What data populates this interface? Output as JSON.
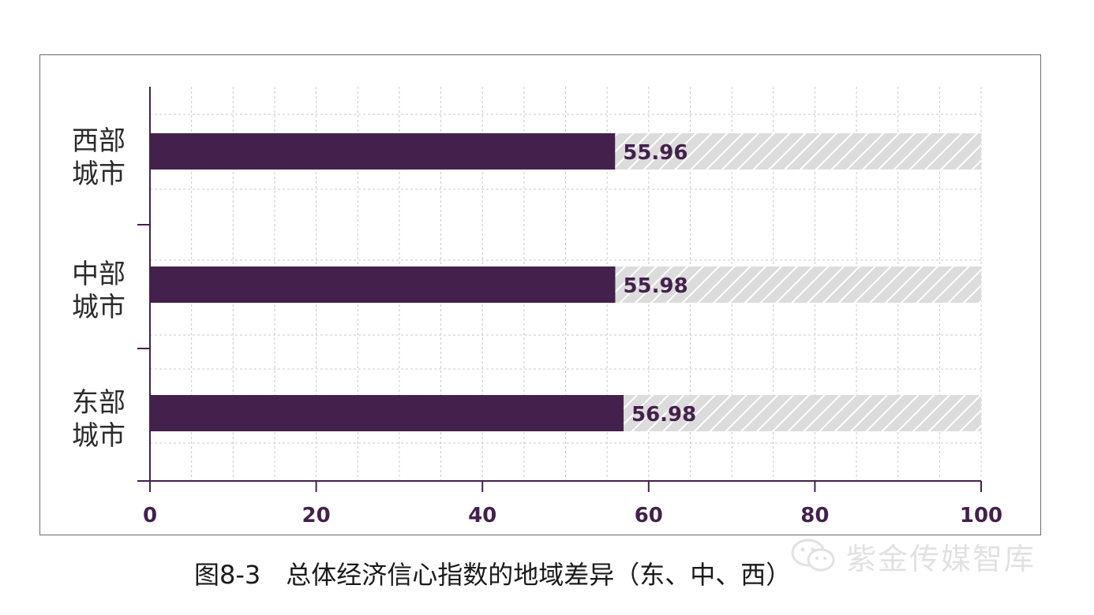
{
  "chart_data": {
    "type": "bar",
    "orientation": "horizontal",
    "categories": [
      "西部\n城市",
      "中部\n城市",
      "东部\n城市"
    ],
    "values": [
      55.96,
      55.98,
      56.98
    ],
    "data_labels": [
      "55.96",
      "55.98",
      "56.98"
    ],
    "xlim": [
      0,
      100
    ],
    "xticks": [
      0,
      20,
      40,
      60,
      80,
      100
    ],
    "xtick_labels": [
      "0",
      "20",
      "40",
      "60",
      "80",
      "100"
    ],
    "grid": true,
    "background_bar_max": 100,
    "colors": {
      "bar": "#44204c",
      "remainder_hatch": "#dcdcdc",
      "axis": "#44204c",
      "grid": "#c8c8c8"
    }
  },
  "caption": "图8-3　总体经济信心指数的地域差异（东、中、西）",
  "watermark": {
    "text": "紫金传媒智库",
    "icon": "wechat-icon"
  }
}
